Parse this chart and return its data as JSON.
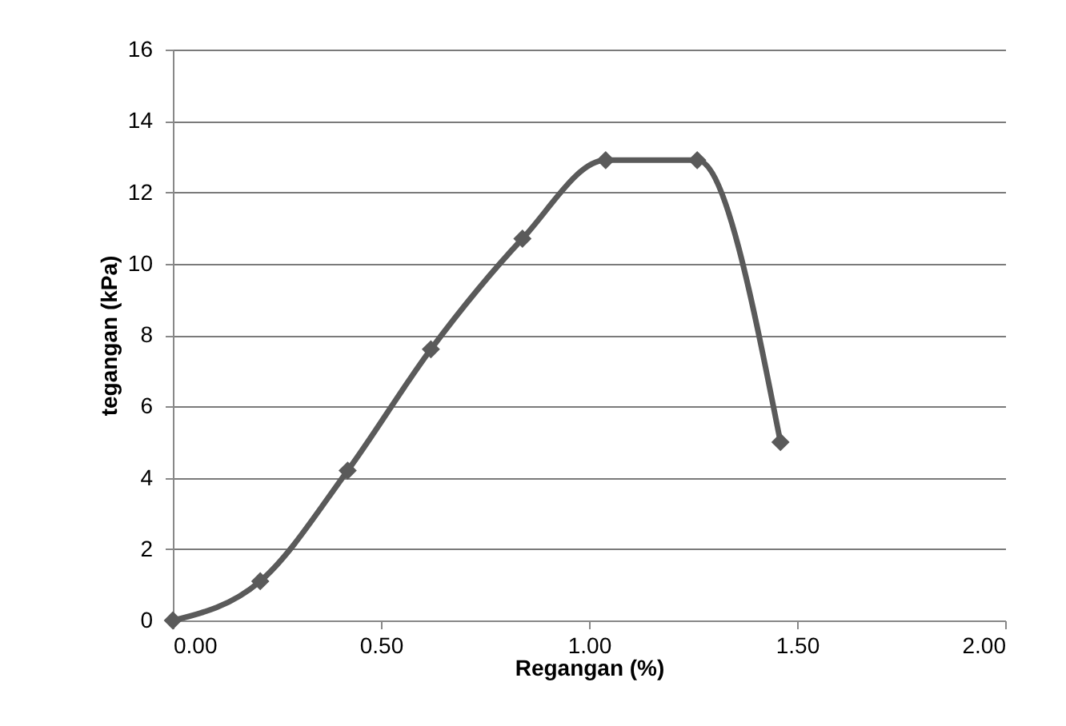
{
  "chart_data": {
    "type": "line",
    "xlabel": "Regangan (%)",
    "ylabel": "tegangan (kPa)",
    "x": [
      0,
      0.21,
      0.42,
      0.62,
      0.84,
      1.04,
      1.26,
      1.46
    ],
    "series": [
      {
        "color": "#5a5a5a",
        "values": [
          0,
          1.1,
          4.2,
          7.6,
          10.7,
          12.9,
          12.9,
          5.0
        ]
      }
    ],
    "xlim": [
      0,
      2
    ],
    "xticks": [
      {
        "value": 0,
        "label": "0.00"
      },
      {
        "value": 0.5,
        "label": "0.50"
      },
      {
        "value": 1,
        "label": "1.00"
      },
      {
        "value": 1.5,
        "label": "1.50"
      },
      {
        "value": 2,
        "label": "2.00"
      }
    ],
    "ylim": [
      0,
      16
    ],
    "yticks": [
      0,
      2,
      4,
      6,
      8,
      10,
      12,
      14,
      16
    ],
    "grid": "y",
    "marker": "diamond",
    "line_style": "solid"
  }
}
